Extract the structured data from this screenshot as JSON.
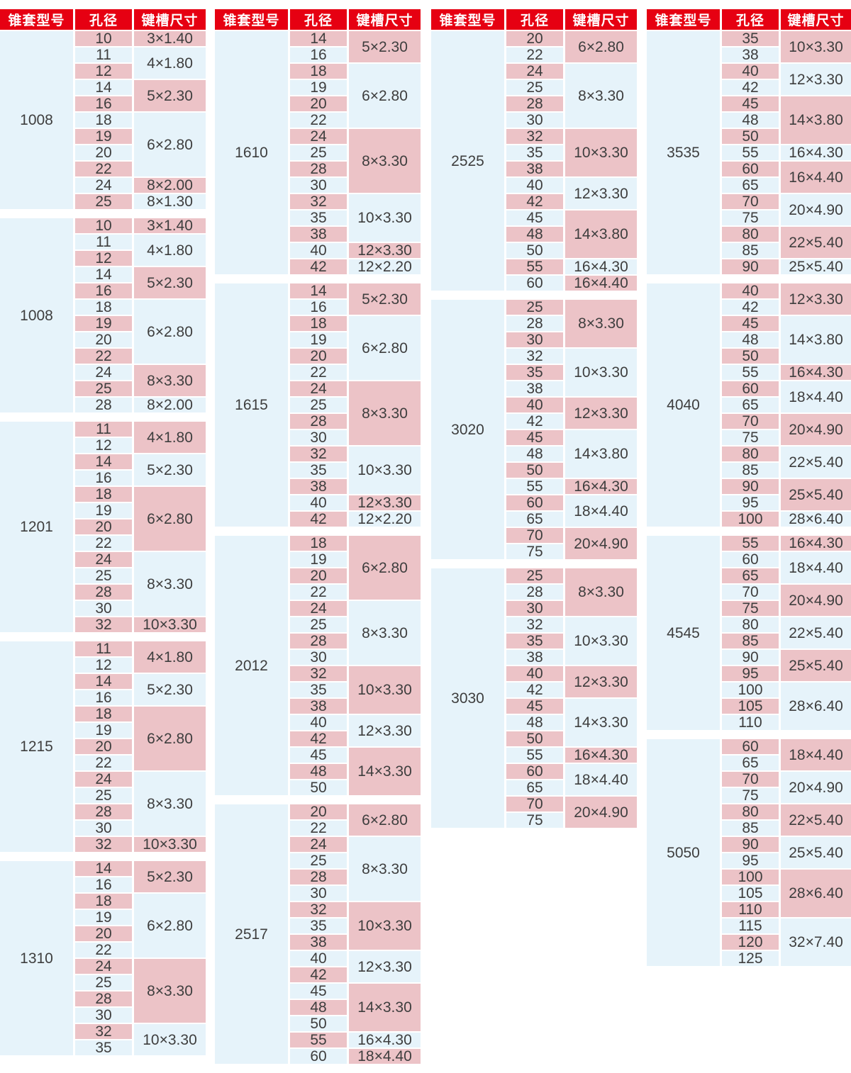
{
  "headers": {
    "model": "锥套型号",
    "bore": "孔径",
    "keyway": "键槽尺寸"
  },
  "colors": {
    "header_red": "#e60012",
    "pink": "#ecc3c7",
    "blue": "#e6f3fa",
    "text": "#3e3e3e",
    "header_text": "#ffffff"
  },
  "columns": [
    {
      "tables": [
        {
          "model": "1008",
          "groups": [
            {
              "bores": [
                "10"
              ],
              "keyway": "3×1.40"
            },
            {
              "bores": [
                "11",
                "12"
              ],
              "keyway": "4×1.80"
            },
            {
              "bores": [
                "14",
                "16"
              ],
              "keyway": "5×2.30"
            },
            {
              "bores": [
                "18",
                "19",
                "20",
                "22"
              ],
              "keyway": "6×2.80"
            },
            {
              "bores": [
                "24"
              ],
              "keyway": "8×2.00"
            },
            {
              "bores": [
                "25"
              ],
              "keyway": "8×1.30"
            }
          ]
        },
        {
          "model": "1008",
          "groups": [
            {
              "bores": [
                "10"
              ],
              "keyway": "3×1.40"
            },
            {
              "bores": [
                "11",
                "12"
              ],
              "keyway": "4×1.80"
            },
            {
              "bores": [
                "14",
                "16"
              ],
              "keyway": "5×2.30"
            },
            {
              "bores": [
                "18",
                "19",
                "20",
                "22"
              ],
              "keyway": "6×2.80"
            },
            {
              "bores": [
                "24",
                "25"
              ],
              "keyway": "8×3.30"
            },
            {
              "bores": [
                "28"
              ],
              "keyway": "8×2.00"
            }
          ]
        },
        {
          "model": "1201",
          "groups": [
            {
              "bores": [
                "11",
                "12"
              ],
              "keyway": "4×1.80"
            },
            {
              "bores": [
                "14",
                "16"
              ],
              "keyway": "5×2.30"
            },
            {
              "bores": [
                "18",
                "19",
                "20",
                "22"
              ],
              "keyway": "6×2.80"
            },
            {
              "bores": [
                "24",
                "25",
                "28",
                "30"
              ],
              "keyway": "8×3.30"
            },
            {
              "bores": [
                "32"
              ],
              "keyway": "10×3.30"
            }
          ]
        },
        {
          "model": "1215",
          "groups": [
            {
              "bores": [
                "11",
                "12"
              ],
              "keyway": "4×1.80"
            },
            {
              "bores": [
                "14",
                "16"
              ],
              "keyway": "5×2.30"
            },
            {
              "bores": [
                "18",
                "19",
                "20",
                "22"
              ],
              "keyway": "6×2.80"
            },
            {
              "bores": [
                "24",
                "25",
                "28",
                "30"
              ],
              "keyway": "8×3.30"
            },
            {
              "bores": [
                "32"
              ],
              "keyway": "10×3.30"
            }
          ]
        },
        {
          "model": "1310",
          "groups": [
            {
              "bores": [
                "14",
                "16"
              ],
              "keyway": "5×2.30"
            },
            {
              "bores": [
                "18",
                "19",
                "20",
                "22"
              ],
              "keyway": "6×2.80"
            },
            {
              "bores": [
                "24",
                "25",
                "28",
                "30"
              ],
              "keyway": "8×3.30"
            },
            {
              "bores": [
                "32",
                "35"
              ],
              "keyway": "10×3.30"
            }
          ]
        }
      ]
    },
    {
      "tables": [
        {
          "model": "1610",
          "groups": [
            {
              "bores": [
                "14",
                "16"
              ],
              "keyway": "5×2.30"
            },
            {
              "bores": [
                "18",
                "19",
                "20",
                "22"
              ],
              "keyway": "6×2.80"
            },
            {
              "bores": [
                "24",
                "25",
                "28",
                "30"
              ],
              "keyway": "8×3.30"
            },
            {
              "bores": [
                "32",
                "35",
                "38"
              ],
              "keyway": "10×3.30"
            },
            {
              "bores": [
                "40"
              ],
              "keyway": "12×3.30"
            },
            {
              "bores": [
                "42"
              ],
              "keyway": "12×2.20"
            }
          ]
        },
        {
          "model": "1615",
          "groups": [
            {
              "bores": [
                "14",
                "16"
              ],
              "keyway": "5×2.30"
            },
            {
              "bores": [
                "18",
                "19",
                "20",
                "22"
              ],
              "keyway": "6×2.80"
            },
            {
              "bores": [
                "24",
                "25",
                "28",
                "30"
              ],
              "keyway": "8×3.30"
            },
            {
              "bores": [
                "32",
                "35",
                "38"
              ],
              "keyway": "10×3.30"
            },
            {
              "bores": [
                "40"
              ],
              "keyway": "12×3.30"
            },
            {
              "bores": [
                "42"
              ],
              "keyway": "12×2.20"
            }
          ]
        },
        {
          "model": "2012",
          "groups": [
            {
              "bores": [
                "18",
                "19",
                "20",
                "22"
              ],
              "keyway": "6×2.80"
            },
            {
              "bores": [
                "24",
                "25",
                "28",
                "30"
              ],
              "keyway": "8×3.30"
            },
            {
              "bores": [
                "32",
                "35",
                "38"
              ],
              "keyway": "10×3.30"
            },
            {
              "bores": [
                "40",
                "42"
              ],
              "keyway": "12×3.30"
            },
            {
              "bores": [
                "45",
                "48",
                "50"
              ],
              "keyway": "14×3.30"
            }
          ]
        },
        {
          "model": "2517",
          "groups": [
            {
              "bores": [
                "20",
                "22"
              ],
              "keyway": "6×2.80"
            },
            {
              "bores": [
                "24",
                "25",
                "28",
                "30"
              ],
              "keyway": "8×3.30"
            },
            {
              "bores": [
                "32",
                "35",
                "38"
              ],
              "keyway": "10×3.30"
            },
            {
              "bores": [
                "40",
                "42"
              ],
              "keyway": "12×3.30"
            },
            {
              "bores": [
                "45",
                "48",
                "50"
              ],
              "keyway": "14×3.30"
            },
            {
              "bores": [
                "55"
              ],
              "keyway": "16×4.30"
            },
            {
              "bores": [
                "60"
              ],
              "keyway": "18×4.40"
            }
          ]
        }
      ]
    },
    {
      "tables": [
        {
          "model": "2525",
          "groups": [
            {
              "bores": [
                "20",
                "22"
              ],
              "keyway": "6×2.80"
            },
            {
              "bores": [
                "24",
                "25",
                "28",
                "30"
              ],
              "keyway": "8×3.30"
            },
            {
              "bores": [
                "32",
                "35",
                "38"
              ],
              "keyway": "10×3.30"
            },
            {
              "bores": [
                "40",
                "42"
              ],
              "keyway": "12×3.30"
            },
            {
              "bores": [
                "45",
                "48",
                "50"
              ],
              "keyway": "14×3.80"
            },
            {
              "bores": [
                "55"
              ],
              "keyway": "16×4.30"
            },
            {
              "bores": [
                "60"
              ],
              "keyway": "16×4.40"
            }
          ]
        },
        {
          "model": "3020",
          "groups": [
            {
              "bores": [
                "25",
                "28",
                "30"
              ],
              "keyway": "8×3.30"
            },
            {
              "bores": [
                "32",
                "35",
                "38"
              ],
              "keyway": "10×3.30"
            },
            {
              "bores": [
                "40",
                "42"
              ],
              "keyway": "12×3.30"
            },
            {
              "bores": [
                "45",
                "48",
                "50"
              ],
              "keyway": "14×3.80"
            },
            {
              "bores": [
                "55"
              ],
              "keyway": "16×4.30"
            },
            {
              "bores": [
                "60",
                "65"
              ],
              "keyway": "18×4.40"
            },
            {
              "bores": [
                "70",
                "75"
              ],
              "keyway": "20×4.90"
            }
          ]
        },
        {
          "model": "3030",
          "groups": [
            {
              "bores": [
                "25",
                "28",
                "30"
              ],
              "keyway": "8×3.30"
            },
            {
              "bores": [
                "32",
                "35",
                "38"
              ],
              "keyway": "10×3.30"
            },
            {
              "bores": [
                "40",
                "42"
              ],
              "keyway": "12×3.30"
            },
            {
              "bores": [
                "45",
                "48",
                "50"
              ],
              "keyway": "14×3.30"
            },
            {
              "bores": [
                "55"
              ],
              "keyway": "16×4.30"
            },
            {
              "bores": [
                "60",
                "65"
              ],
              "keyway": "18×4.40"
            },
            {
              "bores": [
                "70",
                "75"
              ],
              "keyway": "20×4.90"
            }
          ]
        }
      ]
    },
    {
      "tables": [
        {
          "model": "3535",
          "groups": [
            {
              "bores": [
                "35",
                "38"
              ],
              "keyway": "10×3.30"
            },
            {
              "bores": [
                "40",
                "42"
              ],
              "keyway": "12×3.30"
            },
            {
              "bores": [
                "45",
                "48",
                "50"
              ],
              "keyway": "14×3.80"
            },
            {
              "bores": [
                "55"
              ],
              "keyway": "16×4.30"
            },
            {
              "bores": [
                "60",
                "65"
              ],
              "keyway": "16×4.40"
            },
            {
              "bores": [
                "70",
                "75"
              ],
              "keyway": "20×4.90"
            },
            {
              "bores": [
                "80",
                "85"
              ],
              "keyway": "22×5.40"
            },
            {
              "bores": [
                "90"
              ],
              "keyway": "25×5.40"
            }
          ]
        },
        {
          "model": "4040",
          "groups": [
            {
              "bores": [
                "40",
                "42"
              ],
              "keyway": "12×3.30"
            },
            {
              "bores": [
                "45",
                "48",
                "50"
              ],
              "keyway": "14×3.80"
            },
            {
              "bores": [
                "55"
              ],
              "keyway": "16×4.30"
            },
            {
              "bores": [
                "60",
                "65"
              ],
              "keyway": "18×4.40"
            },
            {
              "bores": [
                "70",
                "75"
              ],
              "keyway": "20×4.90"
            },
            {
              "bores": [
                "80",
                "85"
              ],
              "keyway": "22×5.40"
            },
            {
              "bores": [
                "90",
                "95"
              ],
              "keyway": "25×5.40"
            },
            {
              "bores": [
                "100"
              ],
              "keyway": "28×6.40"
            }
          ]
        },
        {
          "model": "4545",
          "groups": [
            {
              "bores": [
                "55"
              ],
              "keyway": "16×4.30"
            },
            {
              "bores": [
                "60",
                "65"
              ],
              "keyway": "18×4.40"
            },
            {
              "bores": [
                "70",
                "75"
              ],
              "keyway": "20×4.90"
            },
            {
              "bores": [
                "80",
                "85"
              ],
              "keyway": "22×5.40"
            },
            {
              "bores": [
                "90",
                "95"
              ],
              "keyway": "25×5.40"
            },
            {
              "bores": [
                "100",
                "105",
                "110"
              ],
              "keyway": "28×6.40"
            }
          ]
        },
        {
          "model": "5050",
          "groups": [
            {
              "bores": [
                "60",
                "65"
              ],
              "keyway": "18×4.40"
            },
            {
              "bores": [
                "70",
                "75"
              ],
              "keyway": "20×4.90"
            },
            {
              "bores": [
                "80",
                "85"
              ],
              "keyway": "22×5.40"
            },
            {
              "bores": [
                "90",
                "95"
              ],
              "keyway": "25×5.40"
            },
            {
              "bores": [
                "100",
                "105",
                "110"
              ],
              "keyway": "28×6.40"
            },
            {
              "bores": [
                "115",
                "120",
                "125"
              ],
              "keyway": "32×7.40"
            }
          ]
        }
      ]
    }
  ]
}
